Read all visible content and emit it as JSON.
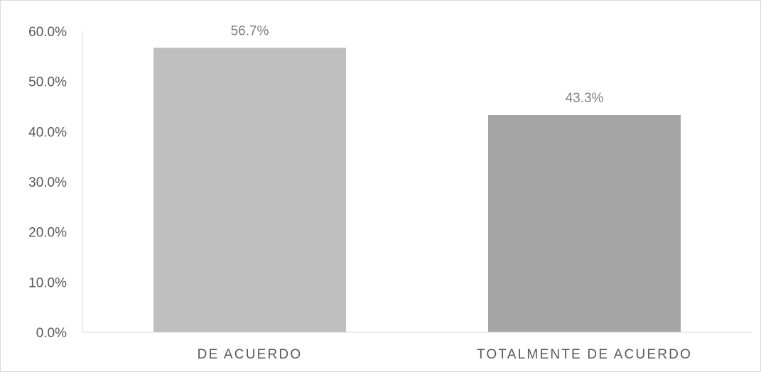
{
  "chart_data": {
    "type": "bar",
    "title": "",
    "xlabel": "",
    "ylabel": "",
    "categories": [
      "DE ACUERDO",
      "TOTALMENTE DE ACUERDO"
    ],
    "values": [
      56.7,
      43.3
    ],
    "data_labels": [
      "56.7%",
      "43.3%"
    ],
    "y_ticks": [
      0,
      10,
      20,
      30,
      40,
      50,
      60
    ],
    "y_tick_labels": [
      "0.0%",
      "10.0%",
      "20.0%",
      "30.0%",
      "40.0%",
      "50.0%",
      "60.0%"
    ],
    "ylim": [
      0,
      60
    ],
    "grid": false,
    "legend": "none",
    "bar_colors": [
      "#bfbfbf",
      "#a5a5a5"
    ],
    "axis_color": "#d9d9d9"
  }
}
